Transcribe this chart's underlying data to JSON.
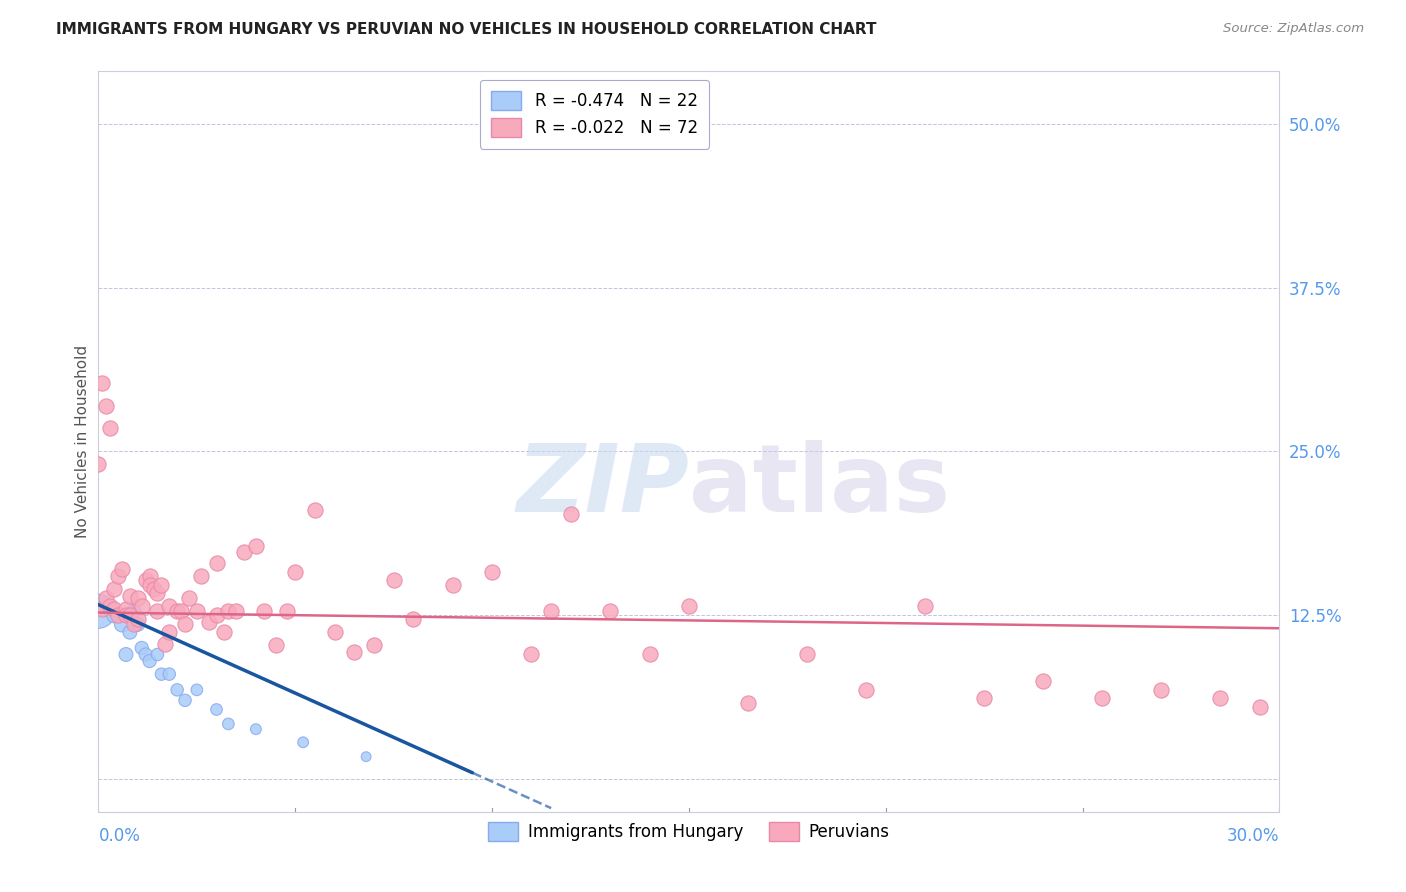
{
  "title": "IMMIGRANTS FROM HUNGARY VS PERUVIAN NO VEHICLES IN HOUSEHOLD CORRELATION CHART",
  "source": "Source: ZipAtlas.com",
  "ylabel": "No Vehicles in Household",
  "xlim": [
    0.0,
    0.3
  ],
  "ylim": [
    -0.025,
    0.54
  ],
  "right_ytick_vals": [
    0.0,
    0.125,
    0.25,
    0.375,
    0.5
  ],
  "right_yticklabels": [
    "",
    "12.5%",
    "25.0%",
    "37.5%",
    "50.0%"
  ],
  "legend_r1": "R = -0.474   N = 22",
  "legend_r2": "R = -0.022   N = 72",
  "watermark": "ZIPatlas",
  "blue_color": "#aaccf8",
  "blue_edge": "#88aaee",
  "pink_color": "#f8aabc",
  "pink_edge": "#e888a8",
  "blue_line_color": "#1a55a0",
  "pink_line_color": "#dd6688",
  "blue_marker_sizes": [
    600,
    120,
    120,
    120,
    100,
    100,
    100,
    100,
    90,
    90,
    90,
    80,
    80,
    80,
    80,
    80,
    70,
    70,
    70,
    60,
    60,
    50
  ],
  "hungary_x": [
    0.0,
    0.003,
    0.004,
    0.006,
    0.007,
    0.008,
    0.009,
    0.01,
    0.011,
    0.012,
    0.013,
    0.015,
    0.016,
    0.018,
    0.02,
    0.022,
    0.025,
    0.03,
    0.033,
    0.04,
    0.052,
    0.068
  ],
  "hungary_y": [
    0.128,
    0.13,
    0.125,
    0.118,
    0.095,
    0.112,
    0.128,
    0.118,
    0.1,
    0.095,
    0.09,
    0.095,
    0.08,
    0.08,
    0.068,
    0.06,
    0.068,
    0.053,
    0.042,
    0.038,
    0.028,
    0.017
  ],
  "peru_x": [
    0.0,
    0.001,
    0.002,
    0.003,
    0.004,
    0.004,
    0.005,
    0.005,
    0.006,
    0.007,
    0.007,
    0.008,
    0.008,
    0.009,
    0.01,
    0.01,
    0.011,
    0.012,
    0.013,
    0.013,
    0.014,
    0.015,
    0.015,
    0.016,
    0.017,
    0.018,
    0.018,
    0.02,
    0.021,
    0.022,
    0.023,
    0.025,
    0.026,
    0.028,
    0.03,
    0.03,
    0.032,
    0.033,
    0.035,
    0.037,
    0.04,
    0.042,
    0.045,
    0.048,
    0.05,
    0.055,
    0.06,
    0.065,
    0.07,
    0.075,
    0.08,
    0.09,
    0.1,
    0.11,
    0.115,
    0.12,
    0.13,
    0.14,
    0.15,
    0.165,
    0.18,
    0.195,
    0.21,
    0.225,
    0.24,
    0.255,
    0.27,
    0.285,
    0.295,
    0.001,
    0.002,
    0.003
  ],
  "peru_y": [
    0.24,
    0.13,
    0.138,
    0.132,
    0.145,
    0.13,
    0.155,
    0.125,
    0.16,
    0.13,
    0.125,
    0.14,
    0.125,
    0.118,
    0.138,
    0.122,
    0.132,
    0.152,
    0.155,
    0.148,
    0.145,
    0.142,
    0.128,
    0.148,
    0.103,
    0.112,
    0.132,
    0.128,
    0.128,
    0.118,
    0.138,
    0.128,
    0.155,
    0.12,
    0.165,
    0.125,
    0.112,
    0.128,
    0.128,
    0.173,
    0.178,
    0.128,
    0.102,
    0.128,
    0.158,
    0.205,
    0.112,
    0.097,
    0.102,
    0.152,
    0.122,
    0.148,
    0.158,
    0.095,
    0.128,
    0.202,
    0.128,
    0.095,
    0.132,
    0.058,
    0.095,
    0.068,
    0.132,
    0.062,
    0.075,
    0.062,
    0.068,
    0.062,
    0.055,
    0.302,
    0.285,
    0.268
  ]
}
